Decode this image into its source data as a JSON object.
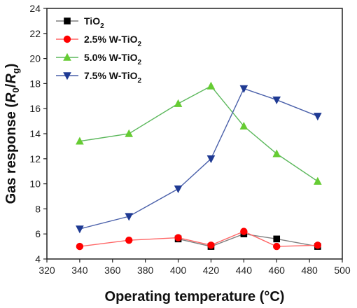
{
  "chart_data": {
    "type": "line",
    "x": [
      340,
      370,
      400,
      420,
      440,
      460,
      485
    ],
    "xlabel": "Operating temperature (°C)",
    "ylabel_main": "Gas response",
    "ylabel_sym": {
      "open": "(",
      "r0_base": "R",
      "r0_sub": "0",
      "slash": "/",
      "rg_base": "R",
      "rg_sub": "g",
      "close": ")"
    },
    "xlim": [
      320,
      500
    ],
    "ylim": [
      4,
      24
    ],
    "xticks": [
      320,
      340,
      360,
      380,
      400,
      420,
      440,
      460,
      480,
      500
    ],
    "yticks": [
      4,
      6,
      8,
      10,
      12,
      14,
      16,
      18,
      20,
      22,
      24
    ],
    "legend_position": "top-left",
    "series": [
      {
        "name_base": "TiO",
        "name_sub": "2",
        "marker": "square",
        "color": "#7f7f7f",
        "marker_color": "#000000",
        "values": [
          null,
          null,
          5.6,
          5.0,
          6.0,
          5.6,
          5.0
        ]
      },
      {
        "name_base": "2.5% W-TiO",
        "name_sub": "2",
        "marker": "circle",
        "color": "#ff6666",
        "marker_color": "#ff0000",
        "values": [
          5.0,
          5.5,
          5.7,
          5.1,
          6.2,
          5.0,
          5.1
        ]
      },
      {
        "name_base": "5.0% W-TiO",
        "name_sub": "2",
        "marker": "triangle-up",
        "color": "#5cb85c",
        "marker_color": "#66cc33",
        "values": [
          13.4,
          14.0,
          16.4,
          17.8,
          14.6,
          12.4,
          10.2
        ]
      },
      {
        "name_base": "7.5% W-TiO",
        "name_sub": "2",
        "marker": "triangle-down",
        "color": "#4a60aa",
        "marker_color": "#1f3a93",
        "values": [
          6.4,
          7.4,
          9.6,
          12.0,
          17.6,
          16.7,
          15.4
        ]
      }
    ]
  }
}
